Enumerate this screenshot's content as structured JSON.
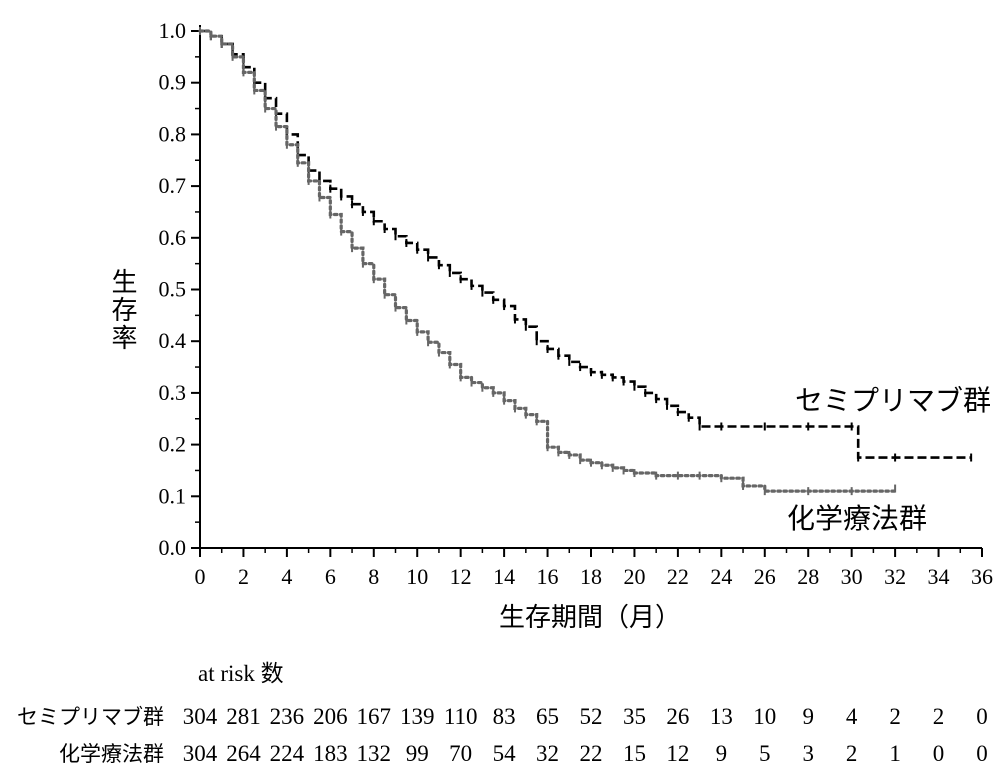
{
  "chart_data": {
    "type": "line",
    "xlabel": "生存期間（月）",
    "ylabel": "生存率",
    "xlim": [
      0,
      36
    ],
    "ylim": [
      0,
      1.0
    ],
    "x_ticks": [
      "0",
      "2",
      "4",
      "6",
      "8",
      "10",
      "12",
      "14",
      "16",
      "18",
      "20",
      "22",
      "24",
      "26",
      "28",
      "30",
      "32",
      "34",
      "36"
    ],
    "y_ticks": [
      "0.0",
      "0.1",
      "0.2",
      "0.3",
      "0.4",
      "0.5",
      "0.6",
      "0.7",
      "0.8",
      "0.9",
      "1.0"
    ],
    "grid": false,
    "series": [
      {
        "name": "セミプリマブ群",
        "style": "dashed",
        "color": "#000000",
        "x": [
          0,
          0.5,
          1,
          1.5,
          2,
          2.5,
          3,
          3.5,
          4,
          4.5,
          5,
          5.5,
          6,
          6.5,
          7,
          7.5,
          8,
          8.5,
          9,
          9.5,
          10,
          10.5,
          11,
          11.5,
          12,
          12.5,
          13,
          13.5,
          14,
          14.5,
          15,
          15.5,
          16,
          16.5,
          17,
          17.5,
          18,
          18.5,
          19,
          19.5,
          20,
          20.5,
          21,
          21.5,
          22,
          22.5,
          23,
          24,
          26,
          28,
          30,
          30.3,
          32,
          35.5
        ],
        "y": [
          1.0,
          0.99,
          0.975,
          0.955,
          0.93,
          0.9,
          0.87,
          0.84,
          0.8,
          0.76,
          0.73,
          0.71,
          0.695,
          0.68,
          0.665,
          0.65,
          0.632,
          0.617,
          0.603,
          0.59,
          0.577,
          0.562,
          0.547,
          0.532,
          0.52,
          0.507,
          0.494,
          0.48,
          0.468,
          0.442,
          0.428,
          0.4,
          0.385,
          0.372,
          0.36,
          0.35,
          0.34,
          0.335,
          0.33,
          0.322,
          0.312,
          0.3,
          0.288,
          0.275,
          0.263,
          0.252,
          0.235,
          0.235,
          0.235,
          0.235,
          0.235,
          0.175,
          0.175,
          0.175
        ]
      },
      {
        "name": "化学療法群",
        "style": "dotted",
        "color": "#666666",
        "x": [
          0,
          0.5,
          1,
          1.5,
          2,
          2.5,
          3,
          3.5,
          4,
          4.5,
          5,
          5.5,
          6,
          6.5,
          7,
          7.5,
          8,
          8.5,
          9,
          9.5,
          10,
          10.5,
          11,
          11.5,
          12,
          12.5,
          13,
          13.5,
          14,
          14.5,
          15,
          15.5,
          16,
          16.5,
          17,
          17.5,
          18,
          18.5,
          19,
          19.5,
          20,
          21,
          22,
          23,
          24,
          25,
          26,
          28,
          30,
          32
        ],
        "y": [
          1.0,
          0.99,
          0.975,
          0.95,
          0.92,
          0.885,
          0.85,
          0.815,
          0.78,
          0.745,
          0.71,
          0.678,
          0.645,
          0.612,
          0.58,
          0.55,
          0.52,
          0.49,
          0.465,
          0.44,
          0.418,
          0.398,
          0.378,
          0.355,
          0.33,
          0.32,
          0.31,
          0.3,
          0.285,
          0.27,
          0.258,
          0.245,
          0.195,
          0.185,
          0.18,
          0.17,
          0.165,
          0.16,
          0.155,
          0.15,
          0.145,
          0.14,
          0.14,
          0.14,
          0.135,
          0.12,
          0.11,
          0.11,
          0.11,
          0.115
        ]
      }
    ],
    "annotations": [
      {
        "text": "セミプリマブ群",
        "series": 0
      },
      {
        "text": "化学療法群",
        "series": 1
      }
    ],
    "at_risk": {
      "header": "at risk 数",
      "rows": [
        {
          "label": "セミプリマブ群",
          "values": [
            "304",
            "281",
            "236",
            "206",
            "167",
            "139",
            "110",
            "83",
            "65",
            "52",
            "35",
            "26",
            "13",
            "10",
            "9",
            "4",
            "2",
            "2",
            "0"
          ]
        },
        {
          "label": "化学療法群",
          "values": [
            "304",
            "264",
            "224",
            "183",
            "132",
            "99",
            "70",
            "54",
            "32",
            "22",
            "15",
            "12",
            "9",
            "5",
            "3",
            "2",
            "1",
            "0",
            "0"
          ]
        }
      ]
    }
  }
}
